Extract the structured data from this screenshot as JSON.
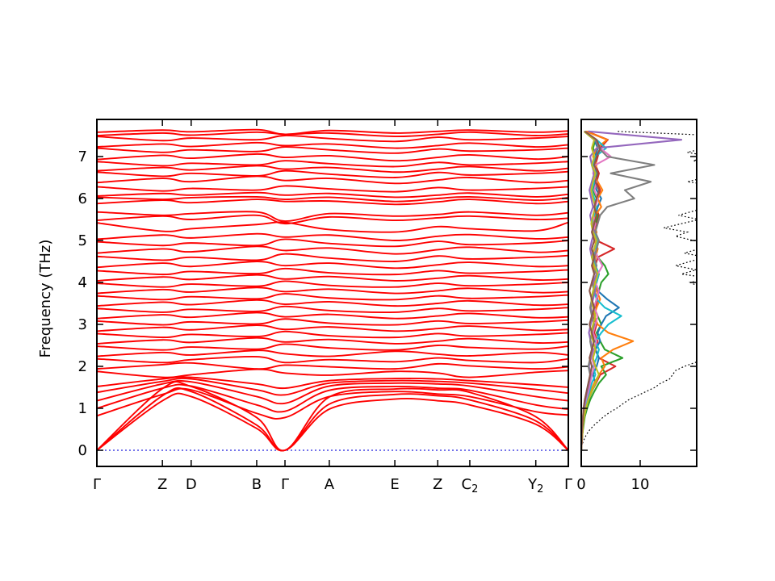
{
  "page": {
    "background": "#ffffff"
  },
  "chart_data": [
    {
      "id": "band_structure",
      "type": "line",
      "title": "",
      "ylabel": "Frequency (THz)",
      "ylim": [
        -0.39,
        7.89
      ],
      "yticks": [
        0,
        1,
        2,
        3,
        4,
        5,
        6,
        7
      ],
      "xlim": [
        0,
        1
      ],
      "band_color": "#fe0000",
      "zero_line": {
        "y": 0,
        "color": "#2222dd",
        "style": "dotted"
      },
      "kpath": {
        "labels": [
          "Γ",
          "Z",
          "D",
          "B",
          "Γ",
          "A",
          "E",
          "Z",
          "C₂",
          "Y₂",
          "Γ"
        ],
        "positions": [
          0,
          0.139,
          0.2,
          0.339,
          0.399,
          0.493,
          0.632,
          0.723,
          0.791,
          0.931,
          1.0
        ]
      },
      "bands": [
        [
          0,
          1.18,
          1.28,
          0.52,
          0,
          0.98,
          1.22,
          1.18,
          1.08,
          0.62,
          0
        ],
        [
          0,
          1.3,
          1.4,
          0.6,
          0,
          1.1,
          1.33,
          1.3,
          1.2,
          0.7,
          0
        ],
        [
          0,
          1.47,
          1.52,
          0.78,
          0,
          1.27,
          1.46,
          1.44,
          1.38,
          0.8,
          0
        ],
        [
          0.82,
          1.33,
          1.44,
          0.88,
          0.78,
          1.28,
          1.4,
          1.34,
          1.28,
          0.92,
          0.84
        ],
        [
          1.0,
          1.48,
          1.53,
          1.08,
          0.93,
          1.43,
          1.52,
          1.48,
          1.43,
          1.08,
          0.98
        ],
        [
          1.18,
          1.58,
          1.63,
          1.28,
          1.12,
          1.53,
          1.6,
          1.58,
          1.53,
          1.28,
          1.18
        ],
        [
          1.38,
          1.64,
          1.7,
          1.44,
          1.32,
          1.6,
          1.66,
          1.64,
          1.6,
          1.45,
          1.36
        ],
        [
          1.52,
          1.7,
          1.74,
          1.58,
          1.48,
          1.66,
          1.71,
          1.7,
          1.66,
          1.56,
          1.5
        ],
        [
          1.88,
          1.74,
          1.8,
          1.93,
          1.84,
          1.79,
          1.88,
          1.84,
          1.74,
          1.86,
          1.9
        ],
        [
          1.94,
          2.04,
          2.08,
          1.94,
          2.03,
          1.99,
          1.94,
          2.06,
          2.01,
          1.94,
          1.99
        ],
        [
          2.18,
          2.09,
          2.16,
          2.23,
          2.09,
          2.16,
          2.11,
          2.2,
          2.14,
          2.09,
          2.18
        ],
        [
          2.24,
          2.33,
          2.27,
          2.38,
          2.3,
          2.24,
          2.36,
          2.29,
          2.25,
          2.33,
          2.27
        ],
        [
          2.48,
          2.39,
          2.46,
          2.41,
          2.53,
          2.44,
          2.39,
          2.5,
          2.45,
          2.41,
          2.48
        ],
        [
          2.54,
          2.63,
          2.57,
          2.68,
          2.58,
          2.64,
          2.54,
          2.6,
          2.66,
          2.56,
          2.58
        ],
        [
          2.78,
          2.69,
          2.76,
          2.71,
          2.83,
          2.73,
          2.69,
          2.78,
          2.72,
          2.76,
          2.8
        ],
        [
          2.84,
          2.93,
          2.87,
          2.98,
          2.88,
          2.94,
          2.84,
          2.9,
          2.96,
          2.86,
          2.88
        ],
        [
          3.08,
          2.99,
          3.06,
          3.01,
          3.13,
          3.03,
          2.99,
          3.08,
          3.02,
          3.06,
          3.1
        ],
        [
          3.14,
          3.23,
          3.17,
          3.28,
          3.18,
          3.24,
          3.14,
          3.2,
          3.26,
          3.16,
          3.18
        ],
        [
          3.38,
          3.29,
          3.36,
          3.31,
          3.43,
          3.33,
          3.29,
          3.38,
          3.32,
          3.36,
          3.4
        ],
        [
          3.44,
          3.53,
          3.47,
          3.58,
          3.48,
          3.54,
          3.44,
          3.5,
          3.56,
          3.46,
          3.48
        ],
        [
          3.68,
          3.59,
          3.66,
          3.61,
          3.73,
          3.63,
          3.59,
          3.68,
          3.62,
          3.66,
          3.7
        ],
        [
          3.74,
          3.83,
          3.77,
          3.88,
          3.78,
          3.84,
          3.74,
          3.8,
          3.86,
          3.76,
          3.78
        ],
        [
          3.98,
          3.89,
          3.96,
          3.91,
          4.03,
          3.93,
          3.89,
          3.98,
          3.92,
          3.96,
          4.0
        ],
        [
          4.04,
          4.13,
          4.07,
          4.18,
          4.08,
          4.14,
          4.04,
          4.1,
          4.16,
          4.06,
          4.08
        ],
        [
          4.28,
          4.19,
          4.26,
          4.21,
          4.33,
          4.23,
          4.19,
          4.28,
          4.22,
          4.26,
          4.3
        ],
        [
          4.36,
          4.46,
          4.38,
          4.5,
          4.4,
          4.46,
          4.34,
          4.42,
          4.48,
          4.38,
          4.4
        ],
        [
          4.62,
          4.53,
          4.6,
          4.53,
          4.68,
          4.58,
          4.5,
          4.63,
          4.56,
          4.6,
          4.64
        ],
        [
          4.7,
          4.8,
          4.73,
          4.86,
          4.76,
          4.82,
          4.68,
          4.78,
          4.84,
          4.72,
          4.76
        ],
        [
          4.97,
          4.88,
          4.94,
          4.88,
          5.03,
          4.93,
          4.86,
          4.98,
          4.9,
          4.94,
          5.0
        ],
        [
          5.03,
          5.13,
          5.06,
          5.16,
          5.08,
          5.13,
          5.0,
          5.1,
          5.14,
          5.04,
          5.08
        ],
        [
          5.42,
          5.22,
          5.28,
          5.38,
          5.43,
          5.26,
          5.2,
          5.33,
          5.28,
          5.23,
          5.43
        ],
        [
          5.48,
          5.58,
          5.5,
          5.6,
          5.4,
          5.56,
          5.48,
          5.54,
          5.58,
          5.5,
          5.53
        ],
        [
          5.68,
          5.6,
          5.64,
          5.68,
          5.46,
          5.64,
          5.58,
          5.62,
          5.68,
          5.6,
          5.66
        ],
        [
          5.88,
          5.96,
          5.9,
          5.98,
          5.93,
          5.94,
          5.86,
          5.92,
          5.98,
          5.88,
          5.93
        ],
        [
          6.03,
          5.98,
          6.02,
          6.04,
          5.98,
          6.03,
          5.93,
          6.0,
          6.04,
          5.96,
          6.02
        ],
        [
          6.06,
          6.12,
          6.08,
          6.14,
          6.08,
          6.12,
          6.03,
          6.08,
          6.13,
          6.04,
          6.1
        ],
        [
          6.28,
          6.18,
          6.24,
          6.2,
          6.3,
          6.23,
          6.16,
          6.26,
          6.2,
          6.24,
          6.28
        ],
        [
          6.38,
          6.48,
          6.4,
          6.53,
          6.43,
          6.48,
          6.36,
          6.44,
          6.5,
          6.38,
          6.43
        ],
        [
          6.63,
          6.53,
          6.6,
          6.54,
          6.66,
          6.58,
          6.5,
          6.62,
          6.56,
          6.6,
          6.64
        ],
        [
          6.66,
          6.74,
          6.68,
          6.78,
          6.7,
          6.74,
          6.63,
          6.7,
          6.76,
          6.66,
          6.72
        ],
        [
          6.88,
          6.78,
          6.84,
          6.8,
          6.9,
          6.83,
          6.76,
          6.86,
          6.8,
          6.84,
          6.88
        ],
        [
          6.93,
          7.03,
          6.96,
          7.06,
          6.98,
          7.02,
          6.9,
          6.98,
          7.04,
          6.94,
          7.0
        ],
        [
          7.2,
          7.1,
          7.16,
          7.12,
          7.23,
          7.16,
          7.08,
          7.18,
          7.13,
          7.16,
          7.2
        ],
        [
          7.23,
          7.3,
          7.24,
          7.33,
          7.26,
          7.3,
          7.2,
          7.26,
          7.32,
          7.23,
          7.28
        ],
        [
          7.48,
          7.38,
          7.44,
          7.4,
          7.5,
          7.43,
          7.36,
          7.46,
          7.4,
          7.44,
          7.48
        ],
        [
          7.5,
          7.56,
          7.51,
          7.58,
          7.53,
          7.56,
          7.48,
          7.53,
          7.58,
          7.5,
          7.54
        ],
        [
          7.58,
          7.63,
          7.59,
          7.64,
          7.53,
          7.62,
          7.56,
          7.6,
          7.63,
          7.58,
          7.61
        ]
      ]
    },
    {
      "id": "dos",
      "type": "line",
      "title": "",
      "xlim": [
        0,
        19.6
      ],
      "xticks": [
        0,
        10
      ],
      "ylim": [
        -0.39,
        7.89
      ],
      "freq_start": 0,
      "freq_step": 0.2,
      "series": [
        {
          "id": "pdos-1",
          "color": "#d62728",
          "values": [
            0,
            0.1,
            0.2,
            0.3,
            0.5,
            0.8,
            1.2,
            1.8,
            2.5,
            3.2,
            5.8,
            3.0,
            2.4,
            2.8,
            2.2,
            2.6,
            2.0,
            2.4,
            2.8,
            2.2,
            2.6,
            3.0,
            2.4,
            2.8,
            5.6,
            2.6,
            2.2,
            2.6,
            3.0,
            2.4,
            2.8,
            3.2,
            2.6,
            3.0,
            2.4,
            2.8,
            3.2,
            4.5,
            1.0
          ]
        },
        {
          "id": "pdos-2",
          "color": "#2ca02c",
          "values": [
            0,
            0.1,
            0.2,
            0.4,
            0.6,
            1.0,
            1.5,
            2.2,
            3.0,
            4.2,
            3.4,
            7.0,
            4.0,
            3.2,
            2.6,
            3.4,
            2.8,
            2.2,
            2.6,
            3.0,
            3.4,
            4.6,
            4.0,
            2.8,
            2.2,
            2.6,
            2.0,
            2.4,
            2.8,
            2.2,
            2.6,
            2.0,
            2.4,
            2.8,
            2.2,
            2.6,
            2.0,
            2.4,
            0.6
          ]
        },
        {
          "id": "pdos-3",
          "color": "#1f77b4",
          "values": [
            0,
            0.1,
            0.2,
            0.3,
            0.5,
            0.8,
            1.2,
            1.8,
            2.4,
            2.0,
            2.6,
            3.0,
            2.4,
            3.2,
            2.8,
            3.4,
            4.2,
            6.4,
            4.4,
            2.8,
            2.2,
            2.6,
            2.0,
            2.4,
            2.8,
            2.2,
            2.6,
            2.0,
            2.4,
            2.8,
            3.4,
            2.6,
            2.2,
            2.6,
            2.0,
            2.4,
            2.8,
            2.2,
            0.5
          ]
        },
        {
          "id": "pdos-4",
          "color": "#ff7f0e",
          "values": [
            0,
            0.1,
            0.2,
            0.3,
            0.5,
            0.8,
            1.2,
            1.6,
            2.2,
            3.0,
            4.0,
            3.4,
            5.4,
            8.8,
            4.6,
            2.8,
            2.2,
            2.6,
            3.2,
            2.6,
            2.2,
            2.6,
            2.0,
            2.4,
            2.8,
            2.2,
            2.6,
            2.0,
            2.4,
            3.4,
            2.8,
            3.6,
            2.8,
            2.2,
            2.6,
            2.0,
            2.6,
            4.4,
            0.8
          ]
        },
        {
          "id": "pdos-5",
          "color": "#17becf",
          "values": [
            0,
            0.1,
            0.1,
            0.2,
            0.4,
            0.6,
            0.9,
            1.4,
            1.8,
            2.4,
            2.0,
            2.6,
            3.0,
            2.4,
            3.4,
            4.6,
            6.8,
            4.0,
            2.6,
            2.2,
            2.6,
            3.0,
            2.4,
            2.0,
            2.4,
            2.8,
            2.2,
            1.8,
            2.2,
            2.6,
            2.2,
            1.8,
            2.2,
            2.6,
            2.0,
            2.4,
            4.2,
            2.6,
            0.6
          ]
        },
        {
          "id": "pdos-6",
          "color": "#e377c2",
          "values": [
            0,
            0.1,
            0.1,
            0.2,
            0.3,
            0.5,
            0.8,
            1.2,
            1.5,
            1.8,
            2.2,
            1.8,
            2.2,
            2.6,
            2.0,
            2.4,
            2.8,
            2.2,
            2.6,
            3.0,
            2.4,
            2.8,
            3.6,
            2.8,
            2.2,
            2.6,
            2.0,
            2.4,
            2.0,
            2.4,
            2.8,
            2.2,
            2.6,
            2.0,
            2.4,
            5.0,
            3.2,
            2.4,
            0.5
          ]
        },
        {
          "id": "pdos-7",
          "color": "#9467bd",
          "values": [
            0,
            0.1,
            0.1,
            0.2,
            0.3,
            0.5,
            0.7,
            1.0,
            1.3,
            1.6,
            1.3,
            1.6,
            2.0,
            1.6,
            1.3,
            1.6,
            2.0,
            1.6,
            2.0,
            2.4,
            2.0,
            2.6,
            2.2,
            1.8,
            1.5,
            1.8,
            2.2,
            1.8,
            1.5,
            2.0,
            1.7,
            1.4,
            1.8,
            2.2,
            1.8,
            1.5,
            2.6,
            17.0,
            1.2
          ]
        },
        {
          "id": "pdos-8",
          "color": "#7f7f7f",
          "values": [
            0,
            0.1,
            0.1,
            0.2,
            0.3,
            0.4,
            0.6,
            0.9,
            1.2,
            1.5,
            1.2,
            1.5,
            1.8,
            1.5,
            1.8,
            2.2,
            1.8,
            1.5,
            1.8,
            2.2,
            1.8,
            2.2,
            2.6,
            2.2,
            2.6,
            3.0,
            2.4,
            2.8,
            3.2,
            4.4,
            9.0,
            7.4,
            11.8,
            5.0,
            12.4,
            4.4,
            3.0,
            2.4,
            0.6
          ]
        },
        {
          "id": "pdos-9",
          "color": "#bcbd22",
          "values": [
            0,
            0.1,
            0.2,
            0.3,
            0.5,
            0.8,
            1.2,
            1.8,
            2.4,
            3.0,
            2.4,
            2.0,
            2.4,
            2.0,
            1.7,
            2.0,
            2.4,
            2.0,
            1.7,
            2.0,
            2.4,
            2.8,
            2.2,
            1.8,
            2.2,
            2.6,
            2.0,
            1.7,
            2.0,
            2.4,
            2.0,
            1.7,
            2.0,
            2.4,
            1.8,
            2.2,
            1.8,
            2.2,
            0.5
          ]
        },
        {
          "id": "pdos-10",
          "color": "#8c564b",
          "values": [
            0,
            0.1,
            0.1,
            0.2,
            0.3,
            0.4,
            0.6,
            0.9,
            1.2,
            1.5,
            1.8,
            1.4,
            1.8,
            2.2,
            1.8,
            1.4,
            1.8,
            2.2,
            1.8,
            1.4,
            1.8,
            2.2,
            1.8,
            2.2,
            1.8,
            2.2,
            1.8,
            2.2,
            2.6,
            2.2,
            2.6,
            3.0,
            2.4,
            2.8,
            2.2,
            2.6,
            3.2,
            2.6,
            0.6
          ]
        }
      ],
      "total": {
        "id": "total-dos",
        "color": "#000000",
        "style": "dotted",
        "freq_start": 0,
        "freq_step": 0.1,
        "values": [
          0,
          0.1,
          0.3,
          0.6,
          1.0,
          1.5,
          2.2,
          3.0,
          3.8,
          4.8,
          6.0,
          7.0,
          8.0,
          9.5,
          11.0,
          12.5,
          13.5,
          15.0,
          15.5,
          16.0,
          17.5,
          19.5,
          22,
          25,
          21,
          24,
          27,
          23,
          26,
          22,
          25,
          28,
          24,
          21,
          26,
          23,
          27,
          22,
          25,
          20,
          18.5,
          22,
          17,
          19.5,
          16,
          18.5,
          21,
          17.5,
          20,
          23,
          19,
          16,
          18,
          14,
          17,
          20,
          16.5,
          19,
          22,
          25,
          21,
          24,
          20,
          23,
          18,
          21,
          24,
          20,
          23,
          19,
          22,
          18,
          21,
          24,
          20,
          23,
          6
        ]
      }
    }
  ]
}
